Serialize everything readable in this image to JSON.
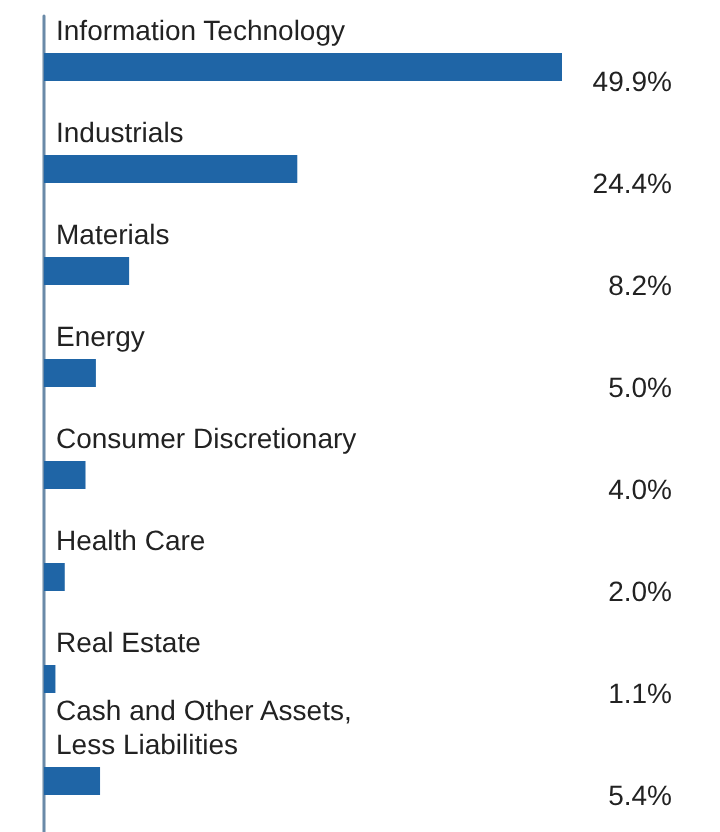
{
  "chart_data": {
    "type": "bar",
    "orientation": "horizontal",
    "categories": [
      "Information Technology",
      "Industrials",
      "Materials",
      "Energy",
      "Consumer Discretionary",
      "Health Care",
      "Real Estate",
      "Cash and Other Assets, Less Liabilities"
    ],
    "values": [
      49.9,
      24.4,
      8.2,
      5.0,
      4.0,
      2.0,
      1.1,
      5.4
    ],
    "value_labels": [
      "49.9%",
      "24.4%",
      "8.2%",
      "5.0%",
      "4.0%",
      "2.0%",
      "1.1%",
      "5.4%"
    ],
    "color": "#1f65a6"
  }
}
